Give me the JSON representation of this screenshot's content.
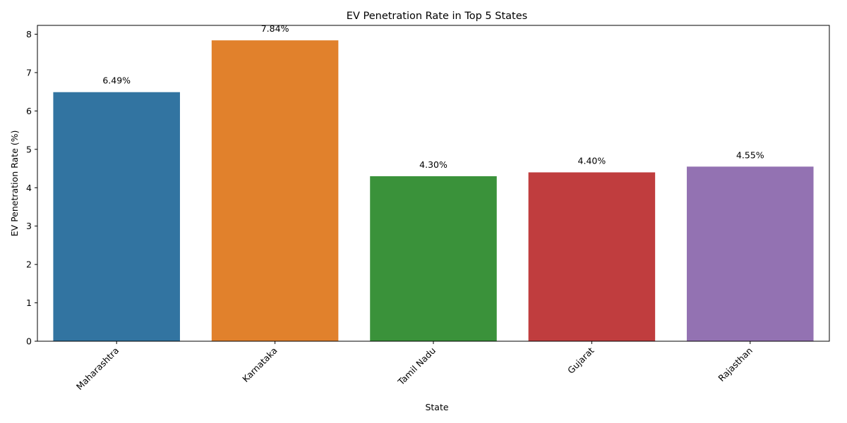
{
  "chart_data": {
    "type": "bar",
    "title": "EV Penetration Rate in Top 5 States",
    "xlabel": "State",
    "ylabel": "EV Penetration Rate (%)",
    "categories": [
      "Maharashtra",
      "Karnataka",
      "Tamil Nadu",
      "Gujarat",
      "Rajasthan"
    ],
    "values": [
      6.49,
      7.84,
      4.3,
      4.4,
      4.55
    ],
    "data_labels": [
      "6.49%",
      "7.84%",
      "4.30%",
      "4.40%",
      "4.55%"
    ],
    "colors": [
      "#3274a1",
      "#e1812c",
      "#3a923a",
      "#c03d3e",
      "#9372b2"
    ],
    "yticks": [
      "0",
      "1",
      "2",
      "3",
      "4",
      "5",
      "6",
      "7",
      "8"
    ],
    "ylim": [
      0,
      8.23
    ],
    "grid": false,
    "legend": "none"
  }
}
